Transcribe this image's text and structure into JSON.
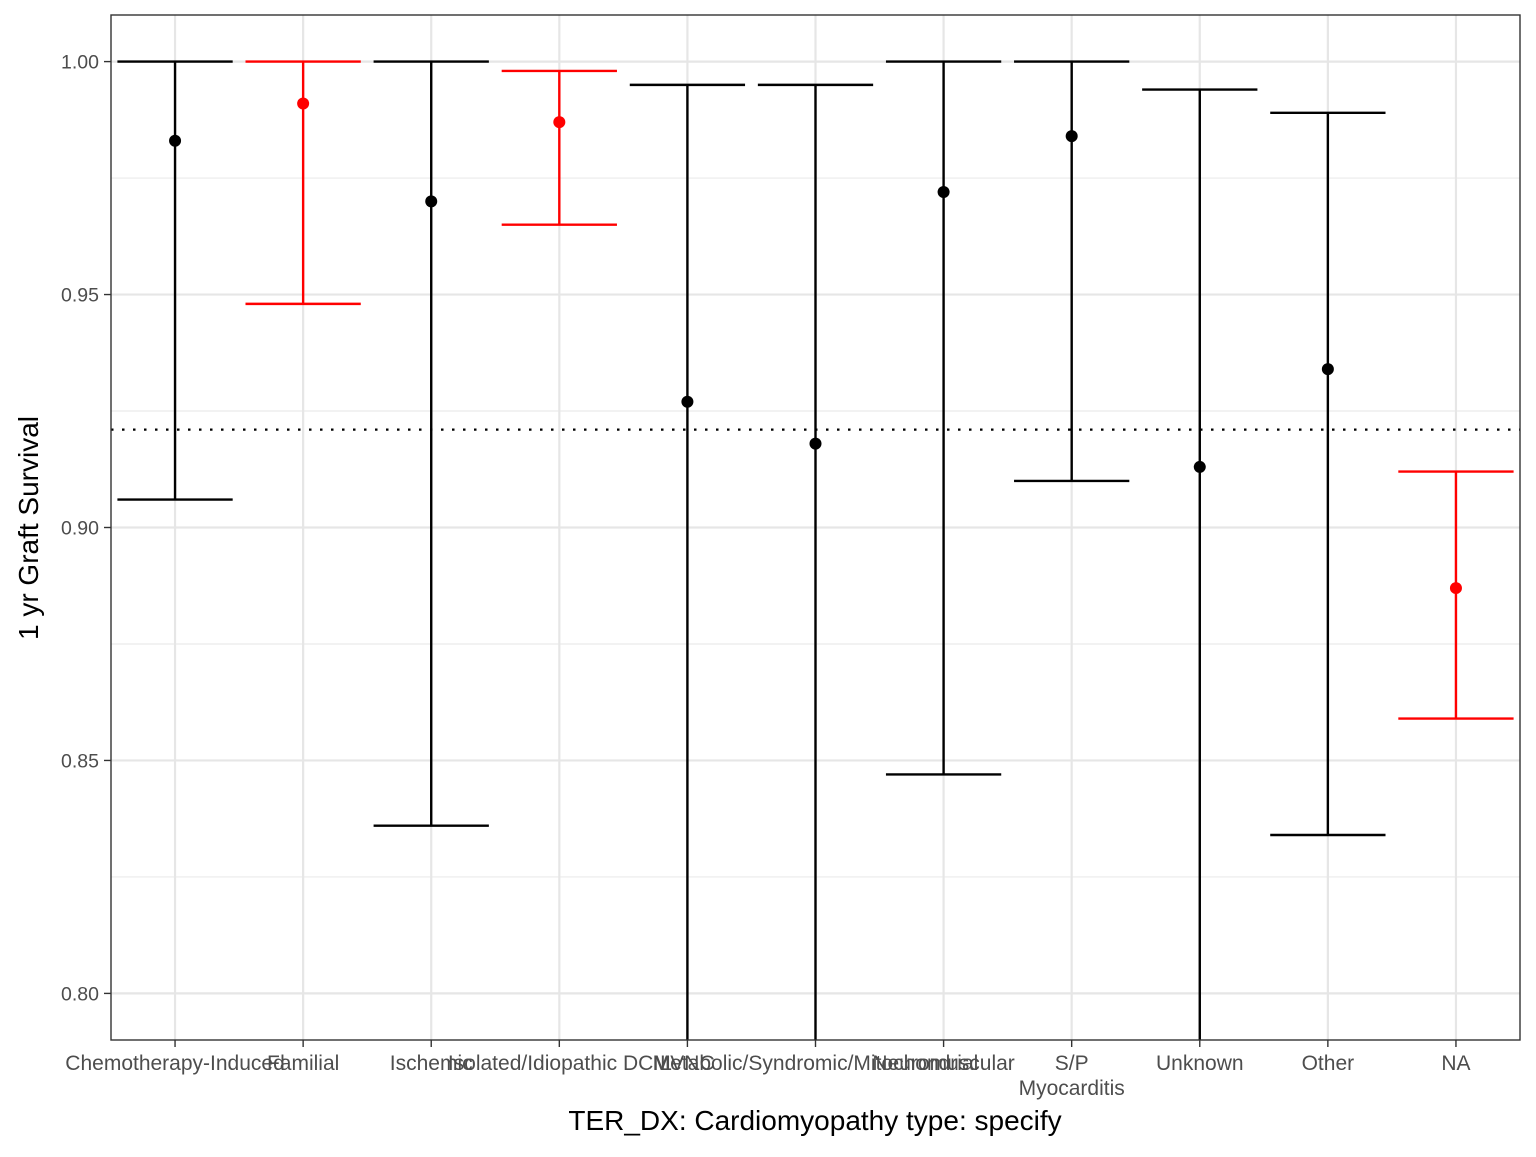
{
  "chart_data": {
    "type": "errorbar",
    "title": "",
    "xlabel": "TER_DX: Cardiomyopathy type: specify",
    "ylabel": "1 yr Graft Survival",
    "ylim": [
      0.79,
      1.01
    ],
    "y_ticks": [
      0.8,
      0.85,
      0.9,
      0.95,
      1.0
    ],
    "y_tick_labels": [
      "0.80",
      "0.85",
      "0.90",
      "0.95",
      "1.00"
    ],
    "reference_line": 0.921,
    "grid": true,
    "colors": {
      "normal": "#000000",
      "highlight": "#ff0000"
    },
    "categories": [
      {
        "label": [
          "Chemotherapy-Induced"
        ],
        "estimate": 0.983,
        "lower": 0.906,
        "upper": 1.0,
        "highlight": false
      },
      {
        "label": [
          "Familial"
        ],
        "estimate": 0.991,
        "lower": 0.948,
        "upper": 1.0,
        "highlight": true
      },
      {
        "label": [
          "Ischemic"
        ],
        "estimate": 0.97,
        "lower": 0.836,
        "upper": 1.0,
        "highlight": false
      },
      {
        "label": [
          "Isolated/Idiopathic DCM"
        ],
        "estimate": 0.987,
        "lower": 0.965,
        "upper": 0.998,
        "highlight": true
      },
      {
        "label": [
          "LVNC"
        ],
        "estimate": 0.927,
        "lower": 0.78,
        "upper": 0.995,
        "highlight": false
      },
      {
        "label": [
          "Metabolic/Syndromic/Mitochondrial"
        ],
        "estimate": 0.918,
        "lower": 0.78,
        "upper": 0.995,
        "highlight": false
      },
      {
        "label": [
          "Neuromuscular"
        ],
        "estimate": 0.972,
        "lower": 0.847,
        "upper": 1.0,
        "highlight": false
      },
      {
        "label": [
          "S/P",
          "Myocarditis"
        ],
        "estimate": 0.984,
        "lower": 0.91,
        "upper": 1.0,
        "highlight": false
      },
      {
        "label": [
          "Unknown"
        ],
        "estimate": 0.913,
        "lower": 0.78,
        "upper": 0.994,
        "highlight": false
      },
      {
        "label": [
          "Other"
        ],
        "estimate": 0.934,
        "lower": 0.834,
        "upper": 0.989,
        "highlight": false
      },
      {
        "label": [
          "NA"
        ],
        "estimate": 0.887,
        "lower": 0.859,
        "upper": 0.912,
        "highlight": true
      }
    ]
  }
}
